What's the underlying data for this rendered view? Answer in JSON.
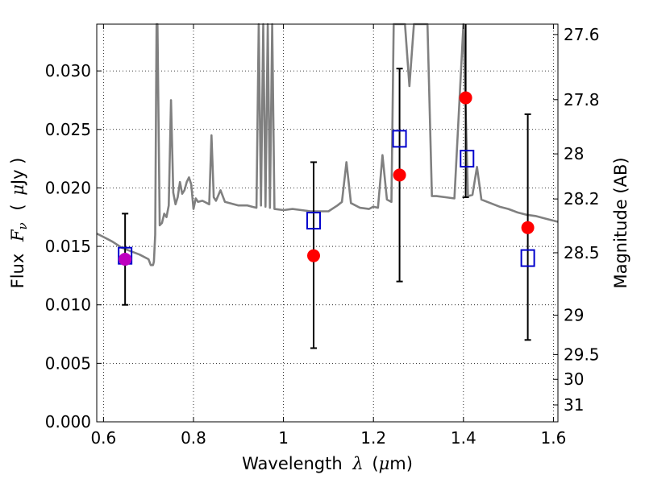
{
  "chart_data": {
    "type": "scatter",
    "title": "",
    "xlabel": "Wavelength",
    "xlabel_math": "λ",
    "xlabel_unit_open": "(",
    "xlabel_unit_mu": "μ",
    "xlabel_unit_rest": "m)",
    "ylabel": "Flux",
    "ylabel_math": "F",
    "ylabel_math_sub": "ν",
    "ylabel_unit_open": "(",
    "ylabel_unit_mu": "μ",
    "ylabel_unit_rest": "Jy )",
    "y2label": "Magnitude (AB)",
    "xlim": [
      0.585,
      1.61
    ],
    "ylim": [
      0.0,
      0.034
    ],
    "grid": true,
    "grid_style": "dotted",
    "x_ticks": [
      {
        "value": 0.6,
        "label": "0.6"
      },
      {
        "value": 0.8,
        "label": "0.8"
      },
      {
        "value": 1.0,
        "label": "1"
      },
      {
        "value": 1.2,
        "label": "1.2"
      },
      {
        "value": 1.4,
        "label": "1.4"
      },
      {
        "value": 1.6,
        "label": "1.6"
      }
    ],
    "y_ticks": [
      {
        "value": 0.0,
        "label": "0.000"
      },
      {
        "value": 0.005,
        "label": "0.005"
      },
      {
        "value": 0.01,
        "label": "0.010"
      },
      {
        "value": 0.015,
        "label": "0.015"
      },
      {
        "value": 0.02,
        "label": "0.020"
      },
      {
        "value": 0.025,
        "label": "0.025"
      },
      {
        "value": 0.03,
        "label": "0.030"
      }
    ],
    "y2_ticks": [
      {
        "mag": 27.6,
        "label": "27.6"
      },
      {
        "mag": 27.8,
        "label": "27.8"
      },
      {
        "mag": 28.0,
        "label": "28"
      },
      {
        "mag": 28.2,
        "label": "28.2"
      },
      {
        "mag": 28.5,
        "label": "28.5"
      },
      {
        "mag": 29.0,
        "label": "29"
      },
      {
        "mag": 29.5,
        "label": "29.5"
      },
      {
        "mag": 30.0,
        "label": "30"
      },
      {
        "mag": 31.0,
        "label": "31"
      }
    ],
    "colors": {
      "spectrum": "#808080",
      "model_marker": "#0000cc",
      "observed": "#ff0000",
      "observed_first": "#bf00bf",
      "errorbar": "#000000",
      "grid": "#000000"
    },
    "spectrum": {
      "name": "",
      "x": [
        0.585,
        0.6,
        0.62,
        0.64,
        0.66,
        0.68,
        0.7,
        0.705,
        0.71,
        0.712,
        0.715,
        0.718,
        0.72,
        0.725,
        0.73,
        0.735,
        0.74,
        0.745,
        0.75,
        0.755,
        0.76,
        0.765,
        0.77,
        0.775,
        0.78,
        0.785,
        0.79,
        0.795,
        0.8,
        0.805,
        0.81,
        0.82,
        0.83,
        0.835,
        0.84,
        0.845,
        0.85,
        0.86,
        0.87,
        0.88,
        0.9,
        0.92,
        0.93,
        0.94,
        0.945,
        0.95,
        0.955,
        0.96,
        0.965,
        0.97,
        0.975,
        0.98,
        1.0,
        1.02,
        1.04,
        1.06,
        1.08,
        1.1,
        1.12,
        1.13,
        1.14,
        1.15,
        1.17,
        1.19,
        1.2,
        1.21,
        1.22,
        1.23,
        1.24,
        1.245,
        1.25,
        1.26,
        1.27,
        1.28,
        1.29,
        1.3,
        1.31,
        1.32,
        1.33,
        1.34,
        1.36,
        1.38,
        1.4,
        1.41,
        1.42,
        1.43,
        1.44,
        1.46,
        1.48,
        1.5,
        1.52,
        1.54,
        1.56,
        1.58,
        1.6,
        1.61
      ],
      "y": [
        0.0161,
        0.0158,
        0.0154,
        0.0149,
        0.0146,
        0.0143,
        0.0139,
        0.0134,
        0.0134,
        0.0137,
        0.016,
        0.034,
        0.034,
        0.0168,
        0.017,
        0.0178,
        0.0175,
        0.0185,
        0.0275,
        0.0196,
        0.0186,
        0.0192,
        0.0205,
        0.0195,
        0.0198,
        0.0205,
        0.0209,
        0.0203,
        0.0182,
        0.0191,
        0.0188,
        0.0189,
        0.0187,
        0.0186,
        0.0245,
        0.0192,
        0.0189,
        0.0198,
        0.0188,
        0.0187,
        0.0185,
        0.0185,
        0.0184,
        0.0183,
        0.034,
        0.0185,
        0.034,
        0.0184,
        0.034,
        0.0183,
        0.034,
        0.0182,
        0.0181,
        0.0182,
        0.0181,
        0.018,
        0.018,
        0.018,
        0.0185,
        0.0188,
        0.0222,
        0.0187,
        0.0183,
        0.0182,
        0.0184,
        0.0183,
        0.0228,
        0.019,
        0.0188,
        0.034,
        0.034,
        0.034,
        0.034,
        0.0287,
        0.034,
        0.034,
        0.034,
        0.034,
        0.0193,
        0.0193,
        0.0192,
        0.0191,
        0.034,
        0.0193,
        0.0194,
        0.0218,
        0.019,
        0.0187,
        0.0184,
        0.0182,
        0.0179,
        0.0177,
        0.0176,
        0.0174,
        0.0172,
        0.0171
      ]
    },
    "model_points": {
      "name": "",
      "x": [
        0.648,
        1.067,
        1.258,
        1.408,
        1.543
      ],
      "y": [
        0.0142,
        0.0172,
        0.0242,
        0.0225,
        0.014
      ]
    },
    "observed_points": {
      "name": "",
      "x": [
        0.648,
        1.067,
        1.258,
        1.405,
        1.543
      ],
      "y": [
        0.0139,
        0.0142,
        0.0211,
        0.0277,
        0.0166
      ],
      "err_low": [
        0.0039,
        0.0079,
        0.0091,
        0.0085,
        0.0096
      ],
      "err_high": [
        0.0039,
        0.008,
        0.0091,
        0.0087,
        0.0097
      ]
    }
  }
}
